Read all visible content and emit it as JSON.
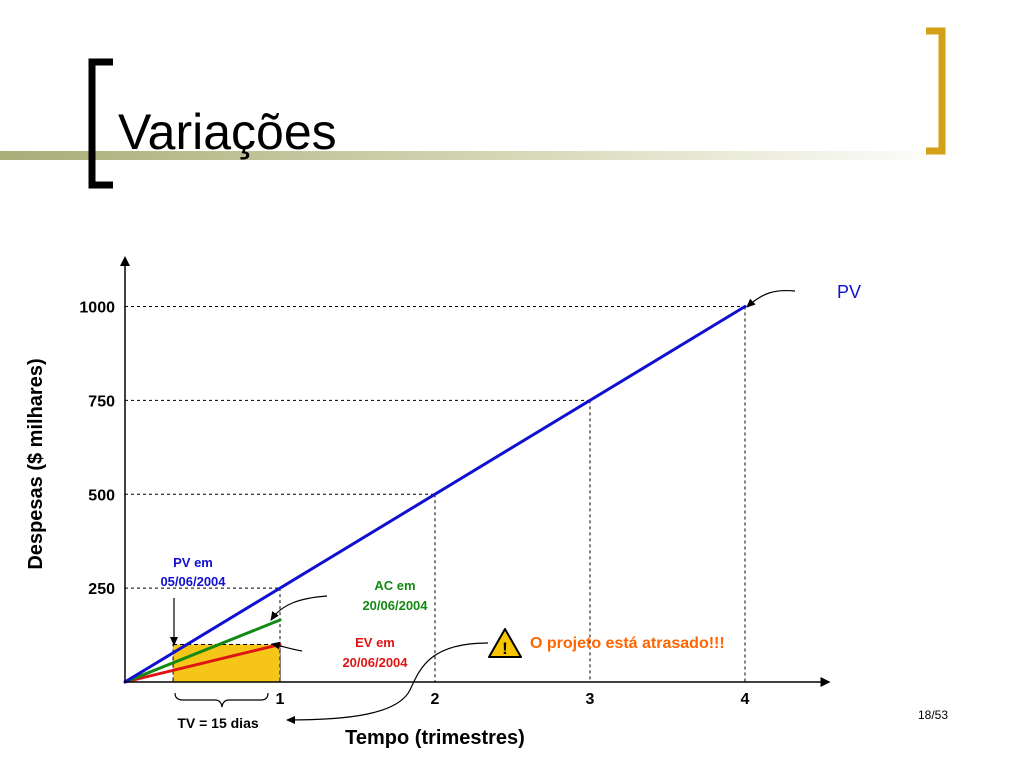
{
  "slide": {
    "title": "Variações",
    "page_number": "18/53"
  },
  "colors": {
    "pv": "#1010d0",
    "ac": "#138a13",
    "ev": "#e01414",
    "tv_box": "#f5c518",
    "warning_text": "#ff6600",
    "bracket_dark": "#000000",
    "bracket_gold": "#d4a017",
    "band_olive": "#b5b98a"
  },
  "chart_data": {
    "type": "line",
    "xlabel": "Tempo (trimestres)",
    "ylabel": "Despesas ($ milhares)",
    "xlim": [
      0,
      4.5
    ],
    "ylim": [
      0,
      1100
    ],
    "x_ticks": [
      {
        "value": 1,
        "label": "1"
      },
      {
        "value": 2,
        "label": "2"
      },
      {
        "value": 3,
        "label": "3"
      },
      {
        "value": 4,
        "label": "4"
      }
    ],
    "y_ticks": [
      {
        "value": 250,
        "label": "250"
      },
      {
        "value": 500,
        "label": "500"
      },
      {
        "value": 750,
        "label": "750"
      },
      {
        "value": 1000,
        "label": "1000"
      }
    ],
    "series": [
      {
        "key": "pv",
        "name": "PV",
        "points": [
          [
            0,
            0
          ],
          [
            4,
            1000
          ]
        ]
      },
      {
        "key": "ac",
        "name": "",
        "points": [
          [
            0,
            0
          ],
          [
            1,
            165
          ]
        ]
      },
      {
        "key": "ev",
        "name": "",
        "points": [
          [
            0,
            0
          ],
          [
            1,
            100
          ]
        ]
      }
    ],
    "tv_region": {
      "x": [
        0.31,
        1.0
      ],
      "y": [
        0,
        100
      ]
    },
    "annotations": {
      "pv_label": "PV",
      "pv_em": [
        "PV em",
        "05/06/2004"
      ],
      "ac_em": [
        "AC em",
        "20/06/2004"
      ],
      "ev_em": [
        "EV em",
        "20/06/2004"
      ],
      "warning": "O projeto está atrasado!!!",
      "tv": "TV = 15 dias"
    }
  }
}
